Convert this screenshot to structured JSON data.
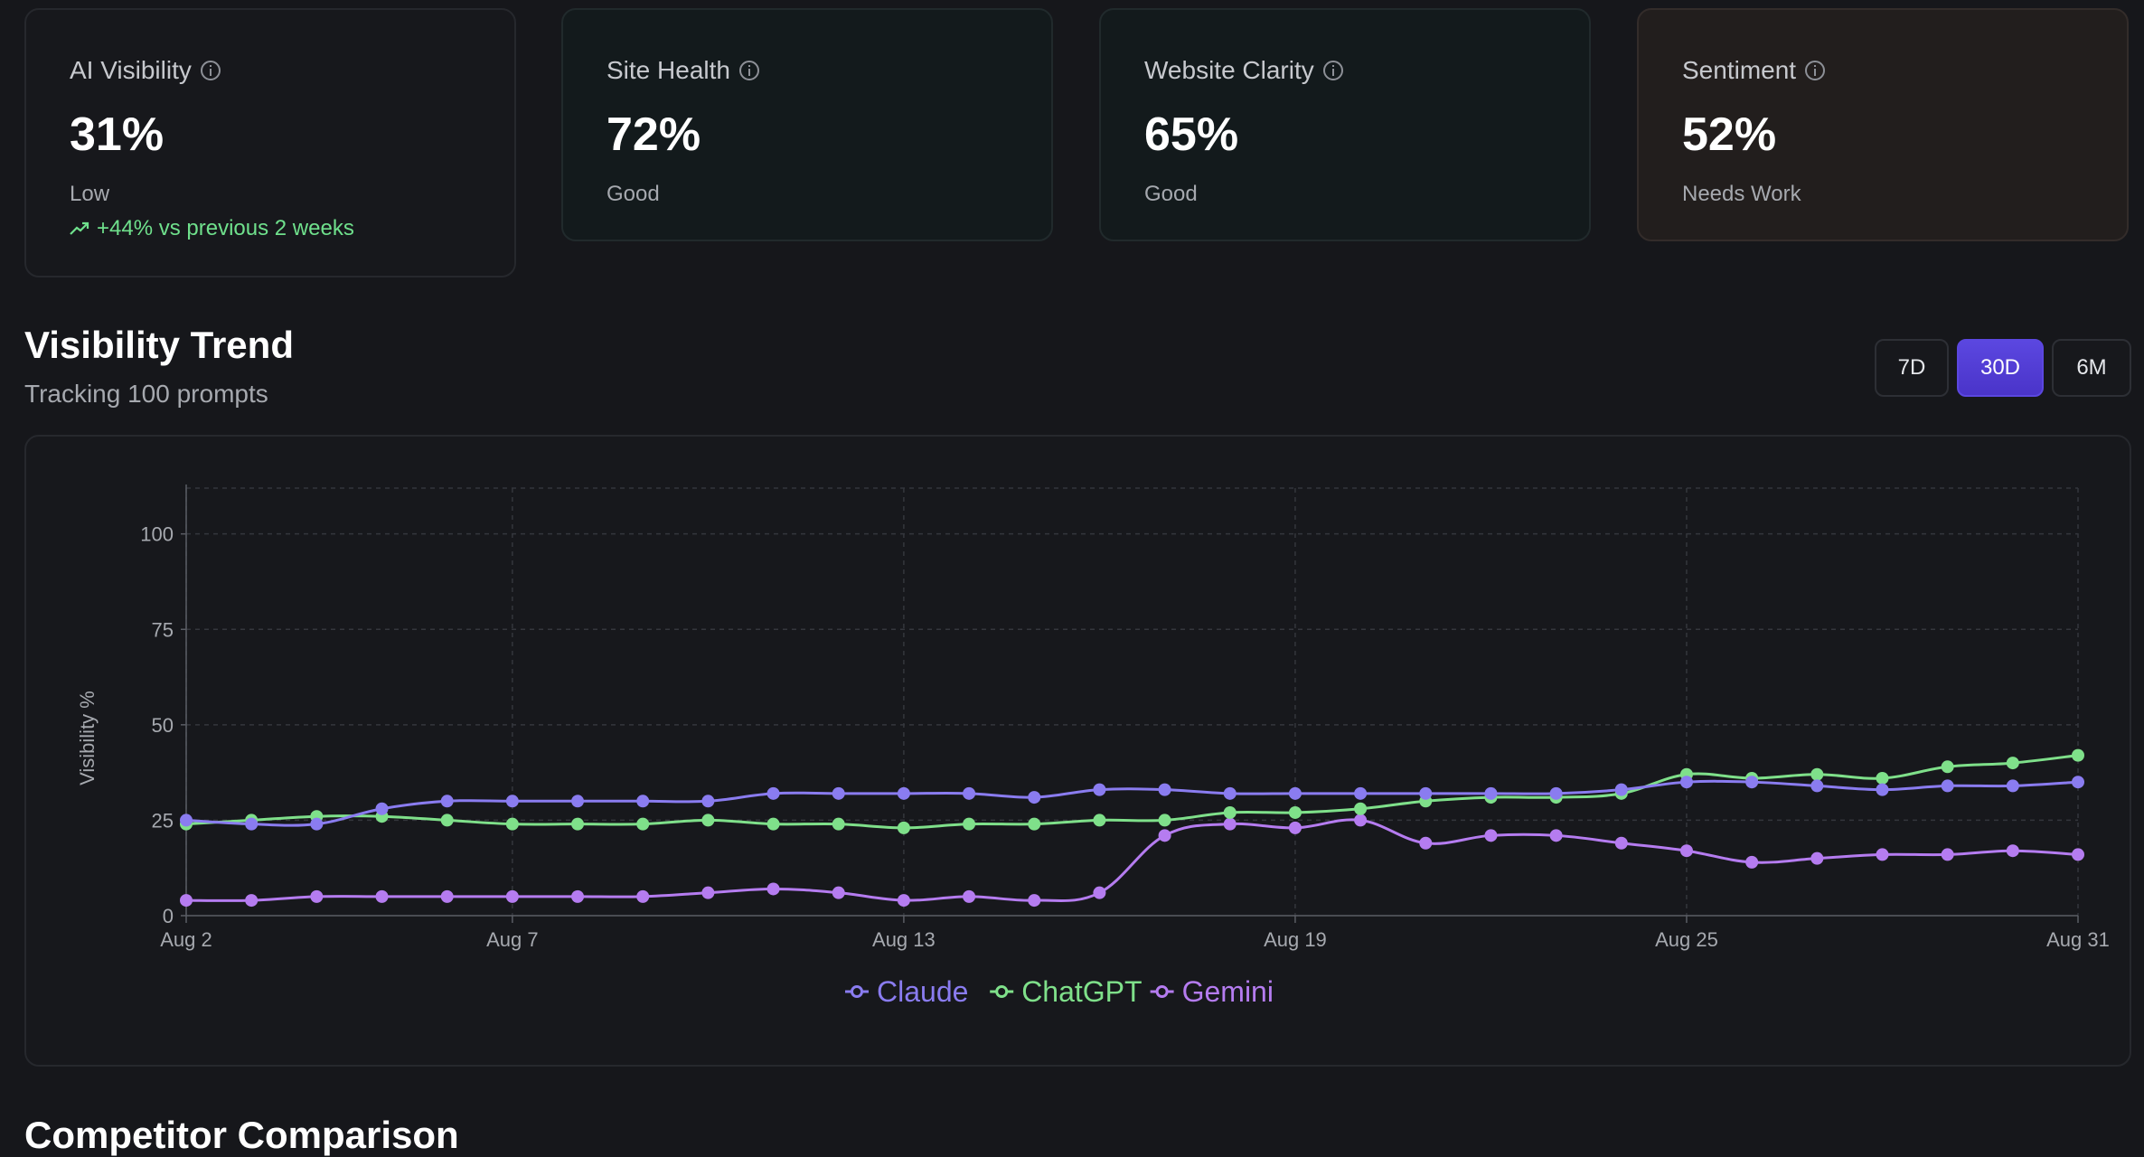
{
  "cards": [
    {
      "title": "AI Visibility",
      "value": "31%",
      "status": "Low",
      "delta": "+44% vs previous 2 weeks"
    },
    {
      "title": "Site Health",
      "value": "72%",
      "status": "Good"
    },
    {
      "title": "Website Clarity",
      "value": "65%",
      "status": "Good"
    },
    {
      "title": "Sentiment",
      "value": "52%",
      "status": "Needs Work"
    }
  ],
  "trend": {
    "title": "Visibility Trend",
    "subtitle": "Tracking 100 prompts",
    "ranges": [
      "7D",
      "30D",
      "6M"
    ],
    "selected_range": "30D"
  },
  "competitor": {
    "title": "Competitor Comparison"
  },
  "colors": {
    "claude": "#8a7cf0",
    "chatgpt": "#7fe08a",
    "gemini": "#b57cf0",
    "accent": "#5b47e0",
    "positive": "#6fe08c"
  },
  "chart_data": {
    "type": "line",
    "ylabel": "Visibility %",
    "ylim": [
      0,
      112
    ],
    "yticks": [
      0,
      25,
      50,
      75,
      100
    ],
    "x": [
      "Aug 2",
      "Aug 3",
      "Aug 4",
      "Aug 5",
      "Aug 6",
      "Aug 7",
      "Aug 8",
      "Aug 9",
      "Aug 10",
      "Aug 11",
      "Aug 12",
      "Aug 13",
      "Aug 14",
      "Aug 15",
      "Aug 16",
      "Aug 17",
      "Aug 18",
      "Aug 19",
      "Aug 20",
      "Aug 21",
      "Aug 22",
      "Aug 23",
      "Aug 24",
      "Aug 25",
      "Aug 26",
      "Aug 27",
      "Aug 28",
      "Aug 29",
      "Aug 30",
      "Aug 31"
    ],
    "xtick_labels": [
      "Aug 2",
      "Aug 7",
      "Aug 13",
      "Aug 19",
      "Aug 25",
      "Aug 31"
    ],
    "grid": true,
    "legend": "bottom-center",
    "series": [
      {
        "name": "Claude",
        "color": "#8a7cf0",
        "values": [
          25,
          24,
          24,
          28,
          30,
          30,
          30,
          30,
          30,
          32,
          32,
          32,
          32,
          31,
          33,
          33,
          32,
          32,
          32,
          32,
          32,
          32,
          33,
          35,
          35,
          34,
          33,
          34,
          34,
          35
        ]
      },
      {
        "name": "ChatGPT",
        "color": "#7fe08a",
        "values": [
          24,
          25,
          26,
          26,
          25,
          24,
          24,
          24,
          25,
          24,
          24,
          23,
          24,
          24,
          25,
          25,
          27,
          27,
          28,
          30,
          31,
          31,
          32,
          37,
          36,
          37,
          36,
          39,
          40,
          42
        ]
      },
      {
        "name": "Gemini",
        "color": "#b57cf0",
        "values": [
          4,
          4,
          5,
          5,
          5,
          5,
          5,
          5,
          6,
          7,
          6,
          4,
          5,
          4,
          6,
          21,
          24,
          23,
          25,
          19,
          21,
          21,
          19,
          17,
          14,
          15,
          16,
          16,
          17,
          16
        ]
      }
    ]
  }
}
